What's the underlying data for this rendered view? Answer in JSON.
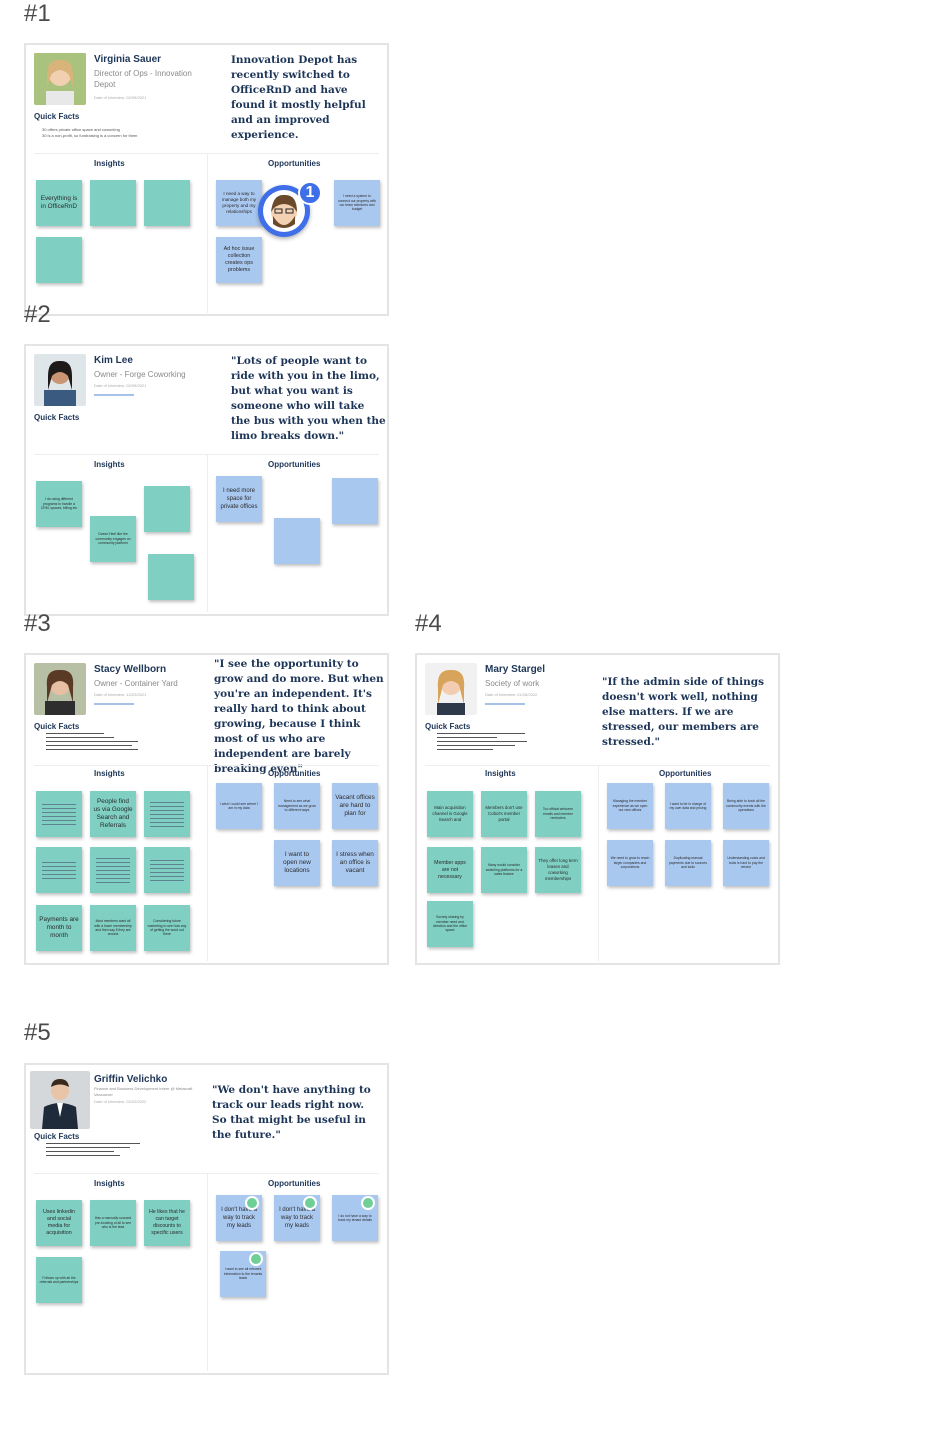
{
  "frames": [
    {
      "label": "#1",
      "name": "Virginia Sauer",
      "role": "Director of Ops - Innovation Depot",
      "date": "Date of Interview: 02/09/2021",
      "quick_facts_title": "Quick Facts",
      "quick_facts": [
        "30 offers private office space and coworking",
        "30 is a non-profit, so fundraising is a concern for them"
      ],
      "quote": "Innovation Depot has recently switched to OfficeRnD and have found it mostly helpful and an improved experience.",
      "insights_title": "Insights",
      "opportunities_title": "Opportunities",
      "insights": [
        "Everything is in OfficeRnD",
        "",
        "",
        ""
      ],
      "opportunities": [
        "I need a way to manage both my property and my relationships",
        "I need a system to connect our property with our team members and budget",
        "Ad hoc issue collection creates ops problems"
      ],
      "notification_count": "1"
    },
    {
      "label": "#2",
      "name": "Kim Lee",
      "role": "Owner - Forge Coworking",
      "date": "Date of Interview: 02/09/2021",
      "quick_facts_title": "Quick Facts",
      "quote": "\"Lots of people want to ride with you in the limo, but what you want is someone who will take the bus with you when the limo breaks down.\"",
      "insights_title": "Insights",
      "opportunities_title": "Opportunities",
      "insights": [
        "I do using different programs to handle a CRM, spaces, billing etc",
        "",
        "Doesn't feel like the community engages on community platform",
        ""
      ],
      "opportunities": [
        "I need more space for private offices",
        "",
        ""
      ]
    },
    {
      "label": "#3",
      "name": "Stacy Wellborn",
      "role": "Owner - Container Yard",
      "date": "Date of Interview: 12/22/2021",
      "quick_facts_title": "Quick Facts",
      "quote": "\"I see the opportunity to grow and do more. But when you're an independent. It's really hard to think about growing, because I think most of us who are independent are barely breaking even\"",
      "insights_title": "Insights",
      "opportunities_title": "Opportunities",
      "insights": [
        "",
        "People find us via Google Search and Referrals",
        "",
        "",
        "",
        "",
        "Payments are month to month",
        "Most members want all with a lower membership and then say if they are around",
        "Considering future marketing to see how any of getting the word out there"
      ],
      "opportunities": [
        "I wish I could see where I am in my data",
        "Need to see what management as we grow to different ways",
        "Vacant offices are hard to plan for",
        "I want to open new locations",
        "I stress when an office is vacant"
      ]
    },
    {
      "label": "#4",
      "name": "Mary Stargel",
      "role": "Society of work",
      "date": "Date of Interview: 01/26/2022",
      "quick_facts_title": "Quick Facts",
      "quote": "\"If the admin side of things doesn't work well, nothing else matters. If we are stressed, our members are stressed.\"",
      "insights_title": "Insights",
      "opportunities_title": "Opportunities",
      "insights": [
        "Main acquisition channel is Google Search and",
        "Members don't use Cobot's member portal",
        "Too official welcome emails and member reminders",
        "Member apps are not necessary",
        "Many would consider switching platforms for a sales feature",
        "They offer long term leases and coworking memberships",
        "Society sharing by member need and direction and the office space"
      ],
      "opportunities": [
        "Managing the member experience as we open our new offices",
        "I want to be in charge of my own data and pricing",
        "Being able to book all the community events with the operations",
        "We need to grow to reach larger companies and corporations",
        "Duplicating manual payments due to sources and tools",
        "Understanding costs and tools is hard to pay the vendor"
      ]
    },
    {
      "label": "#5",
      "name": "Griffin Velichko",
      "role": "Finance and Business Development Intern @ Metacraft Vancouver",
      "date": "Date of Interview: 02/22/2022",
      "quick_facts_title": "Quick Facts",
      "quote": "\"We don't have anything to track our leads right now. So that might be useful in the future.\"",
      "insights_title": "Insights",
      "opportunities_title": "Opportunities",
      "insights": [
        "Uses linkedin and social media for acquisition",
        "Has a manually sourced pre-booking of all to see who is the lead",
        "He likes that he can target discounts to specific users",
        "Follows up with all the referrals and partnerships"
      ],
      "opportunities": [
        "I don't have a way to track my leads",
        "I don't have a way to track my leads",
        "I do not have a way to track my tenant details",
        "I want to see all relevant information to the tenants leads"
      ]
    }
  ],
  "colors": {
    "teal": "#7fcfc2",
    "blue": "#a9c8f0",
    "accent": "#3f6fe8",
    "chip": "#6fcf97"
  }
}
